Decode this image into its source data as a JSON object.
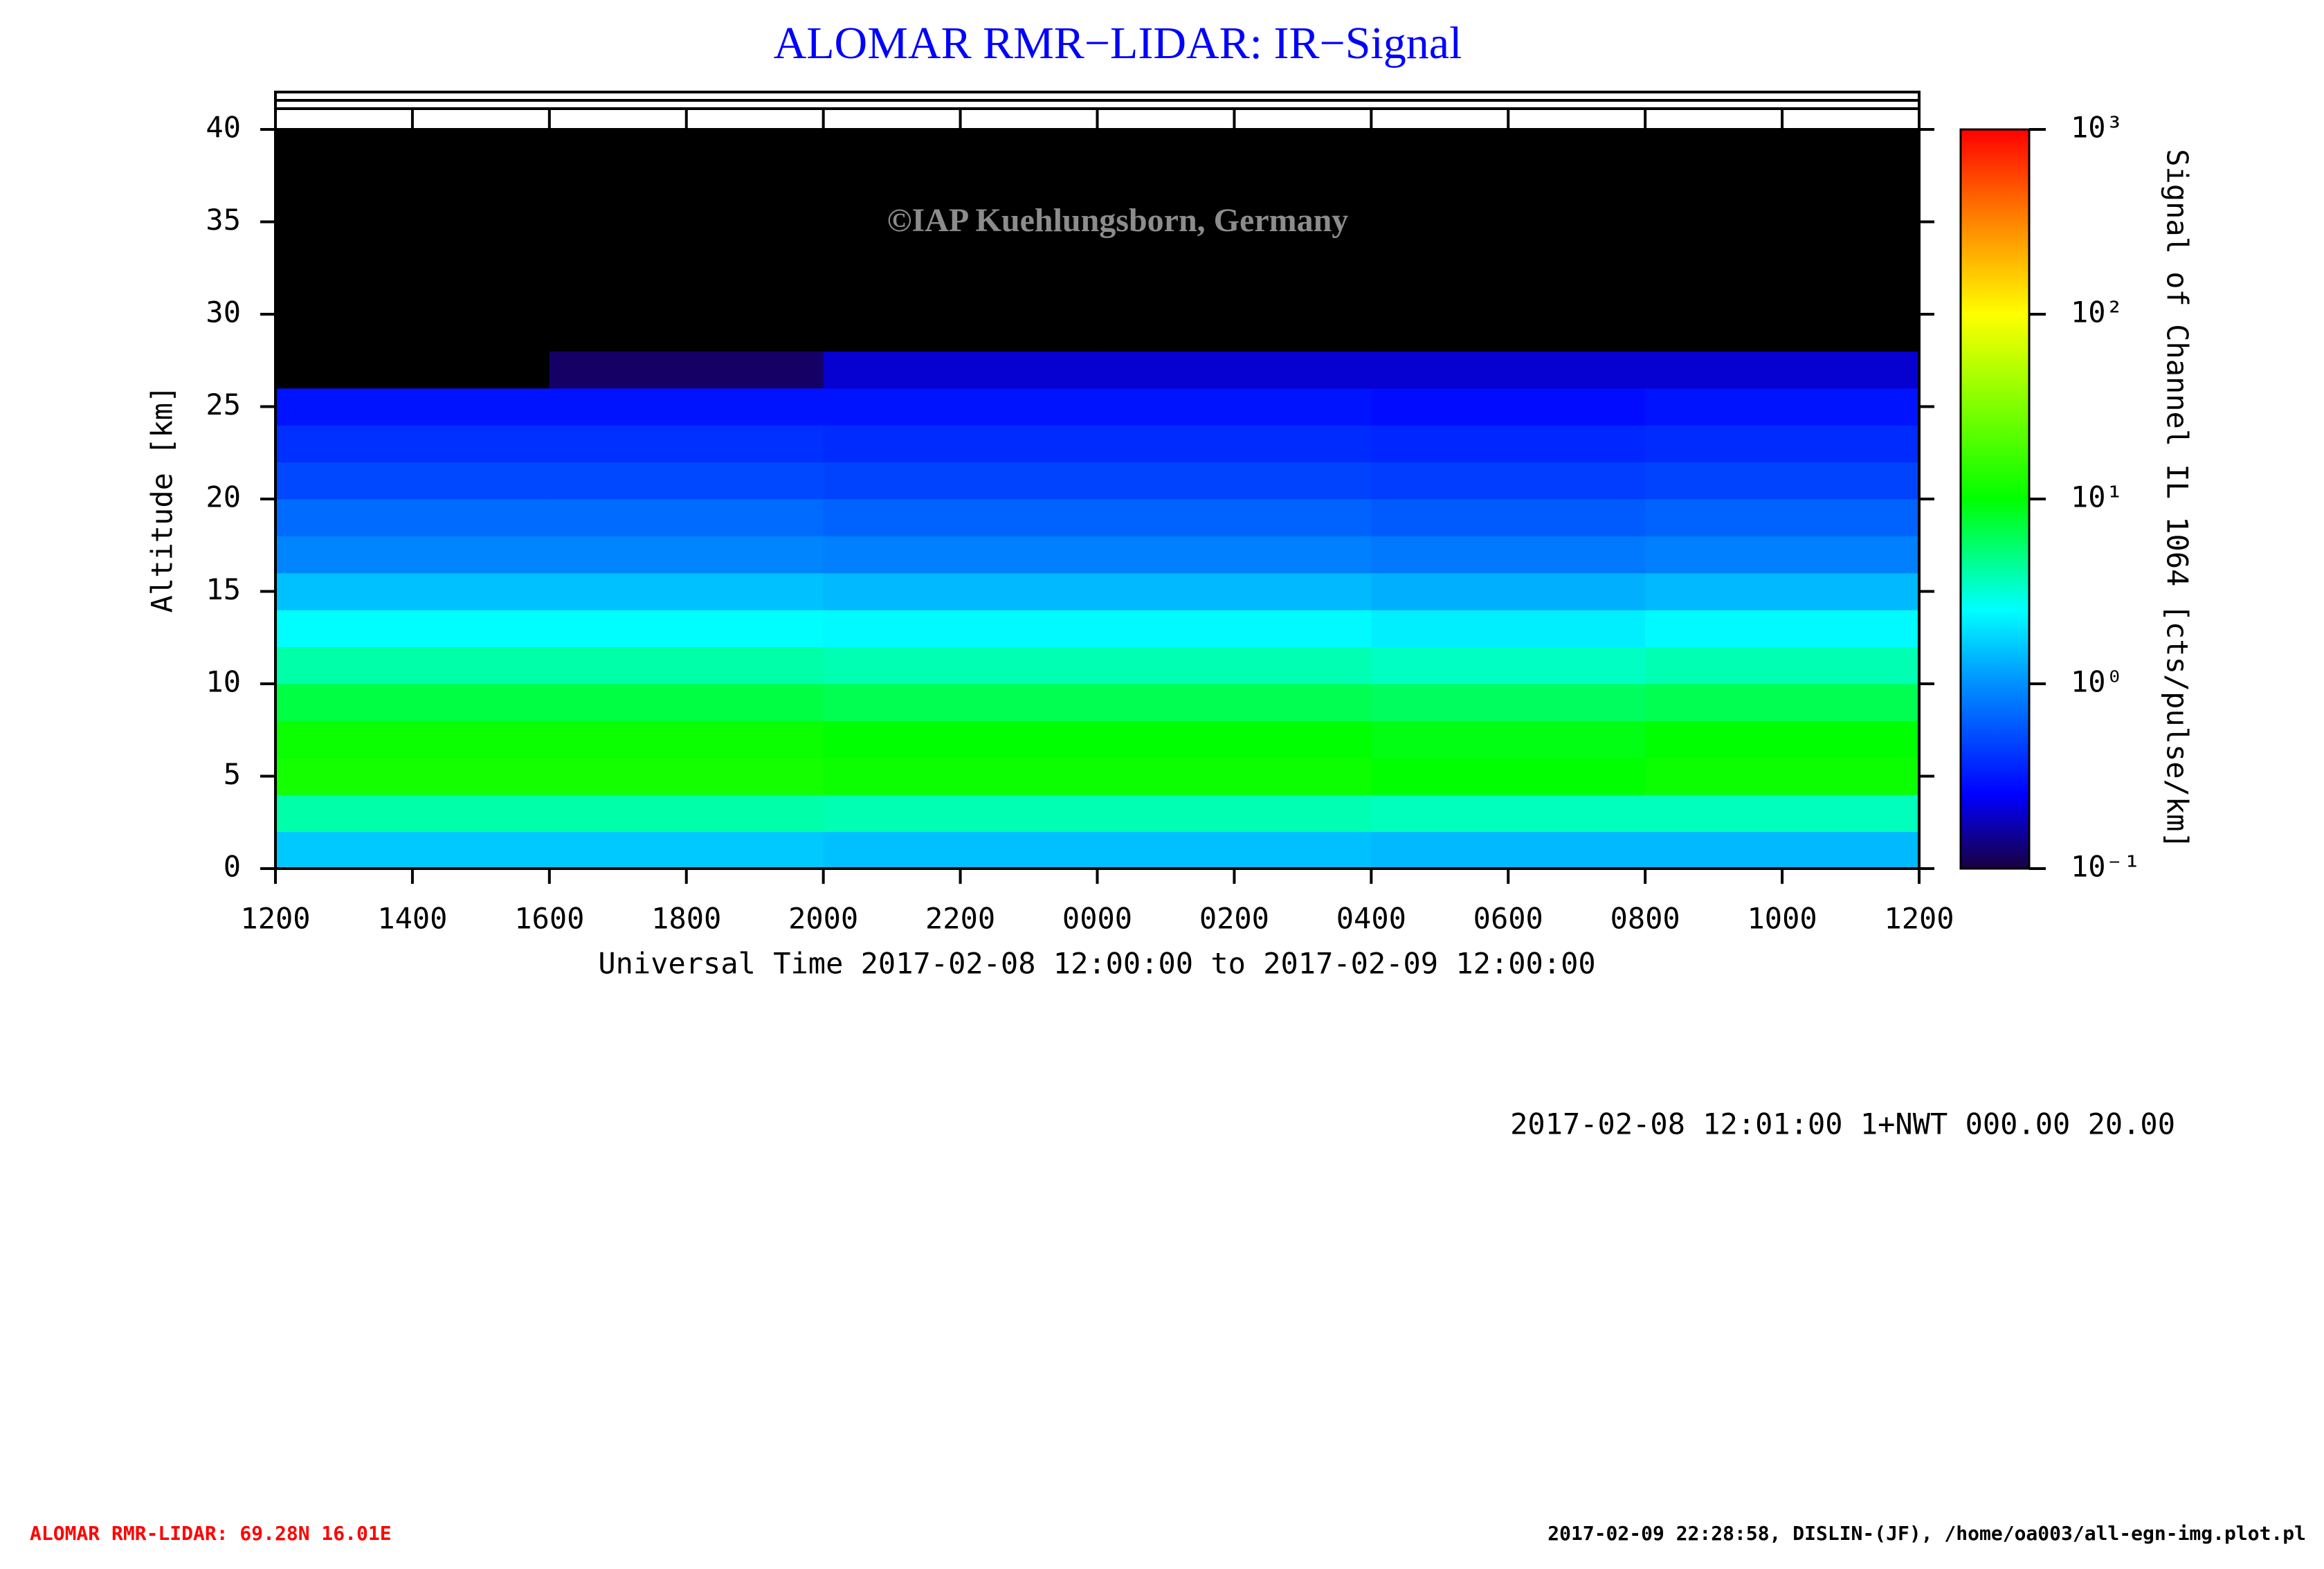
{
  "chart_data": {
    "type": "heatmap",
    "title": "ALOMAR RMR−LIDAR: IR−Signal",
    "watermark": "©IAP Kuehlungsborn, Germany",
    "x_label": "Universal Time 2017-02-08 12:00:00 to 2017-02-09 12:00:00",
    "y_label": "Altitude [km]",
    "colorbar_label": "Signal of Channel IL 1064 [cts/pulse/km]",
    "xlim": [
      0,
      24
    ],
    "xticks": [
      {
        "value": 0,
        "label": "1200"
      },
      {
        "value": 2,
        "label": "1400"
      },
      {
        "value": 4,
        "label": "1600"
      },
      {
        "value": 6,
        "label": "1800"
      },
      {
        "value": 8,
        "label": "2000"
      },
      {
        "value": 10,
        "label": "2200"
      },
      {
        "value": 12,
        "label": "0000"
      },
      {
        "value": 14,
        "label": "0200"
      },
      {
        "value": 16,
        "label": "0400"
      },
      {
        "value": 18,
        "label": "0600"
      },
      {
        "value": 20,
        "label": "0800"
      },
      {
        "value": 22,
        "label": "1000"
      },
      {
        "value": 24,
        "label": "1200"
      }
    ],
    "ylim": [
      0,
      40
    ],
    "yticks": [
      0,
      5,
      10,
      15,
      20,
      25,
      30,
      35,
      40
    ],
    "zlim": [
      0.1,
      1000
    ],
    "zscale": "log",
    "zticks": [
      {
        "value": 0.1,
        "label": "10⁻¹"
      },
      {
        "value": 1,
        "label": "10⁰"
      },
      {
        "value": 10,
        "label": "10¹"
      },
      {
        "value": 100,
        "label": "10²"
      },
      {
        "value": 1000,
        "label": "10³"
      }
    ],
    "colorscale": [
      [
        0,
        "#1a0040"
      ],
      [
        0.1,
        "#0000ff"
      ],
      [
        0.25,
        "#0090ff"
      ],
      [
        0.35,
        "#00ffff"
      ],
      [
        0.5,
        "#00ff00"
      ],
      [
        0.75,
        "#ffff00"
      ],
      [
        0.88,
        "#ff8000"
      ],
      [
        1,
        "#ff0000"
      ]
    ],
    "under_color": "#000000",
    "x_bins": [
      0,
      4,
      8,
      12,
      16,
      20,
      24
    ],
    "y_bins": [
      0,
      2,
      4,
      6,
      8,
      10,
      12,
      14,
      16,
      18,
      20,
      22,
      24,
      26,
      28,
      30,
      32,
      34,
      36,
      38,
      40
    ],
    "values": [
      [
        1.6,
        1.6,
        1.5,
        1.5,
        1.4,
        1.4
      ],
      [
        4,
        4,
        3.8,
        3.8,
        3.6,
        3.6
      ],
      [
        12,
        12,
        11,
        11,
        10,
        11
      ],
      [
        11,
        11,
        10,
        10,
        9,
        10
      ],
      [
        7,
        7,
        6.5,
        6.5,
        6,
        6.5
      ],
      [
        4,
        4,
        3.8,
        3.8,
        3.5,
        3.8
      ],
      [
        2.5,
        2.5,
        2.4,
        2.4,
        2.2,
        2.4
      ],
      [
        1.5,
        1.5,
        1.4,
        1.4,
        1.3,
        1.4
      ],
      [
        0.9,
        0.9,
        0.85,
        0.85,
        0.8,
        0.85
      ],
      [
        0.7,
        0.7,
        0.65,
        0.65,
        0.6,
        0.65
      ],
      [
        0.5,
        0.5,
        0.48,
        0.48,
        0.45,
        0.48
      ],
      [
        0.4,
        0.4,
        0.38,
        0.38,
        0.36,
        0.38
      ],
      [
        0.3,
        0.3,
        0.3,
        0.3,
        0.28,
        0.3
      ],
      [
        0.05,
        0.12,
        0.2,
        0.2,
        0.2,
        0.2
      ],
      [
        0.05,
        0.05,
        0.05,
        0.05,
        0.05,
        0.05
      ],
      [
        0.05,
        0.05,
        0.05,
        0.05,
        0.05,
        0.05
      ],
      [
        0.05,
        0.05,
        0.05,
        0.05,
        0.05,
        0.05
      ],
      [
        0.05,
        0.05,
        0.05,
        0.05,
        0.05,
        0.05
      ],
      [
        0.05,
        0.05,
        0.05,
        0.05,
        0.05,
        0.05
      ],
      [
        0.05,
        0.05,
        0.05,
        0.05,
        0.05,
        0.05
      ]
    ],
    "info": "2017-02-08 12:01:00 1+NWT 000.00 20.00",
    "footer_left": "ALOMAR RMR-LIDAR: 69.28N 16.01E",
    "footer_right": "2017-02-09 22:28:58, DISLIN-(JF), /home/oa003/all-egn-img.plot.pl"
  }
}
